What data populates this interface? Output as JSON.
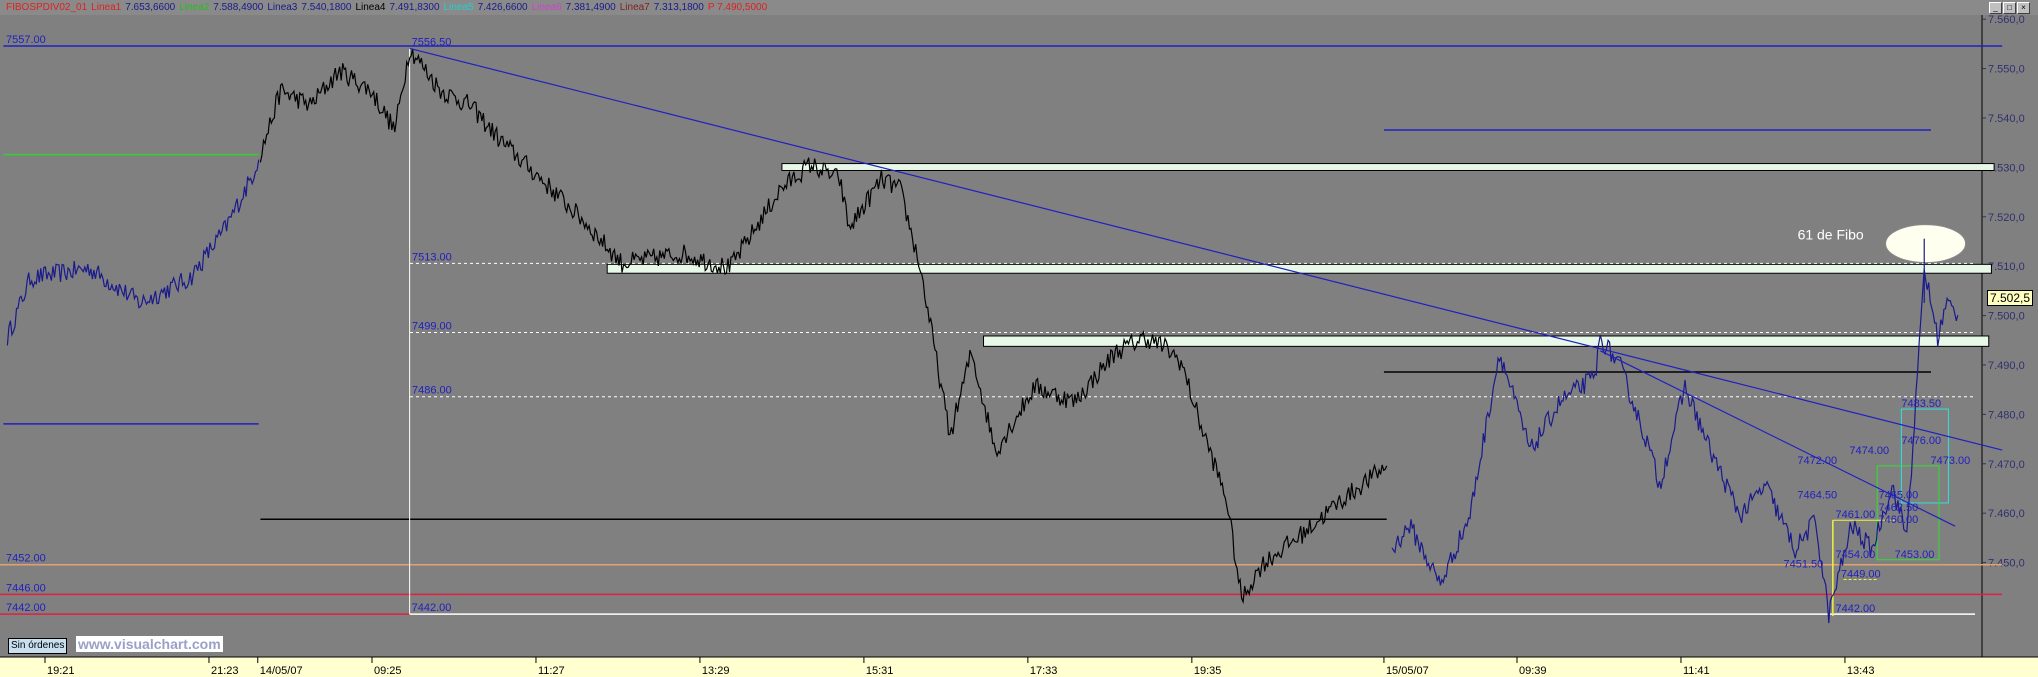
{
  "header": {
    "items": [
      {
        "label": "FIBOSPDIV02_01",
        "color": "#e02020"
      },
      {
        "label": "Linea1",
        "color": "#e02020"
      },
      {
        "label": "7.653,6600",
        "color": "#1a1a8c"
      },
      {
        "label": "Linea2",
        "color": "#20c020"
      },
      {
        "label": "7.588,4900",
        "color": "#1a1a8c"
      },
      {
        "label": "Linea3",
        "color": "#1a1a8c"
      },
      {
        "label": "7.540,1800",
        "color": "#1a1a8c"
      },
      {
        "label": "Linea4",
        "color": "#000000"
      },
      {
        "label": "7.491,8300",
        "color": "#1a1a8c"
      },
      {
        "label": "Linea5",
        "color": "#20d0d0"
      },
      {
        "label": "7.426,6600",
        "color": "#1a1a8c"
      },
      {
        "label": "Linea6",
        "color": "#d040d0"
      },
      {
        "label": "7.381,4900",
        "color": "#1a1a8c"
      },
      {
        "label": "Linea7",
        "color": "#802020"
      },
      {
        "label": "7.313,1800",
        "color": "#1a1a8c"
      },
      {
        "label": "P 7.490,5000",
        "color": "#e02020"
      }
    ],
    "window_buttons": [
      "_",
      "□",
      "×"
    ]
  },
  "footer": {
    "orders_label": "Sin órdenes",
    "watermark": "www.visualchart.com"
  },
  "chart_data": {
    "type": "line",
    "title": "",
    "y_ticks": [
      "7.560,0",
      "7.550,0",
      "7.540,0",
      "7.530,0",
      "7.520,0",
      "7.510,0",
      "7.500,0",
      "7.490,0",
      "7.480,0",
      "7.470,0",
      "7.460,0",
      "7.450,0"
    ],
    "y_tick_values": [
      7560,
      7550,
      7540,
      7530,
      7520,
      7510,
      7500,
      7490,
      7480,
      7470,
      7460,
      7450
    ],
    "ylim": [
      7439,
      7563
    ],
    "x_ticks": [
      {
        "label": "19:21",
        "session": "A",
        "time": "19:21"
      },
      {
        "label": "21:23",
        "session": "A",
        "time": "21:23"
      },
      {
        "label": "14/05/07",
        "session": "B",
        "time": "08:00"
      },
      {
        "label": "09:25",
        "session": "B",
        "time": "09:25"
      },
      {
        "label": "11:27",
        "session": "B",
        "time": "11:27"
      },
      {
        "label": "13:29",
        "session": "B",
        "time": "13:29"
      },
      {
        "label": "15:31",
        "session": "B",
        "time": "15:31"
      },
      {
        "label": "17:33",
        "session": "B",
        "time": "17:33"
      },
      {
        "label": "19:35",
        "session": "B",
        "time": "19:35"
      },
      {
        "label": "15/05/07",
        "session": "C",
        "time": "08:00"
      },
      {
        "label": "09:39",
        "session": "C",
        "time": "09:39"
      },
      {
        "label": "11:41",
        "session": "C",
        "time": "11:41"
      },
      {
        "label": "13:43",
        "session": "C",
        "time": "13:43"
      }
    ],
    "last_price": "7.502,5",
    "series": [
      {
        "session": "A",
        "color": "#1a1a8c",
        "points": [
          [
            "18:53",
            7498
          ],
          [
            "19:10",
            7510
          ],
          [
            "19:54",
            7512
          ],
          [
            "20:32",
            7505
          ],
          [
            "21:09",
            7510
          ],
          [
            "21:35",
            7520
          ],
          [
            "21:54",
            7530
          ],
          [
            "22:00",
            7534
          ]
        ]
      },
      {
        "session": "B",
        "color": "#000000",
        "points": [
          [
            "08:02",
            7535
          ],
          [
            "08:17",
            7548
          ],
          [
            "08:39",
            7545
          ],
          [
            "09:01",
            7552
          ],
          [
            "09:24",
            7548
          ],
          [
            "09:42",
            7540
          ],
          [
            "09:53",
            7556.5
          ],
          [
            "10:16",
            7548
          ],
          [
            "10:38",
            7545
          ],
          [
            "11:00",
            7538
          ],
          [
            "11:31",
            7530
          ],
          [
            "12:01",
            7522
          ],
          [
            "12:31",
            7513
          ],
          [
            "13:16",
            7515
          ],
          [
            "13:51",
            7512
          ],
          [
            "14:29",
            7528
          ],
          [
            "14:51",
            7533
          ],
          [
            "15:13",
            7530
          ],
          [
            "15:20",
            7520
          ],
          [
            "15:44",
            7530
          ],
          [
            "15:58",
            7528
          ],
          [
            "16:13",
            7512
          ],
          [
            "16:24",
            7495
          ],
          [
            "16:35",
            7478
          ],
          [
            "16:51",
            7495
          ],
          [
            "17:09",
            7475
          ],
          [
            "17:38",
            7488
          ],
          [
            "18:08",
            7485
          ],
          [
            "18:38",
            7495
          ],
          [
            "19:00",
            7498
          ],
          [
            "19:15",
            7496
          ],
          [
            "19:27",
            7493
          ],
          [
            "19:42",
            7480
          ],
          [
            "20:01",
            7465
          ],
          [
            "20:12",
            7445
          ],
          [
            "20:27",
            7452
          ],
          [
            "20:56",
            7458
          ],
          [
            "21:26",
            7465
          ],
          [
            "22:00",
            7472
          ]
        ]
      },
      {
        "session": "C",
        "color": "#1a1a8c",
        "points": [
          [
            "08:06",
            7455
          ],
          [
            "08:19",
            7460
          ],
          [
            "08:42",
            7448
          ],
          [
            "09:04",
            7462
          ],
          [
            "09:26",
            7495
          ],
          [
            "09:49",
            7475
          ],
          [
            "10:11",
            7485
          ],
          [
            "10:37",
            7490
          ],
          [
            "10:41",
            7498
          ],
          [
            "10:56",
            7492
          ],
          [
            "11:18",
            7475
          ],
          [
            "11:25",
            7468
          ],
          [
            "11:44",
            7488
          ],
          [
            "12:03",
            7475
          ],
          [
            "12:25",
            7462
          ],
          [
            "12:44",
            7468
          ],
          [
            "13:06",
            7455
          ],
          [
            "13:21",
            7461
          ],
          [
            "13:31",
            7442
          ],
          [
            "13:48",
            7460
          ],
          [
            "14:03",
            7455
          ],
          [
            "14:18",
            7468
          ],
          [
            "14:29",
            7458
          ],
          [
            "14:37",
            7490
          ],
          [
            "14:42",
            7512
          ],
          [
            "14:52",
            7498
          ],
          [
            "14:59",
            7505
          ],
          [
            "15:07",
            7502.5
          ]
        ]
      }
    ],
    "levels": [
      {
        "price": 7557,
        "color": "#2020c0",
        "from": [
          "A",
          "18:50"
        ],
        "to": [
          "C",
          "15:40"
        ],
        "label": "7557.00"
      },
      {
        "price": 7535,
        "color": "#30d030",
        "from": [
          "A",
          "18:50"
        ],
        "to": [
          "A",
          "22:00"
        ]
      },
      {
        "price": 7480.5,
        "color": "#2020c0",
        "from": [
          "A",
          "18:50"
        ],
        "to": [
          "A",
          "22:00"
        ]
      },
      {
        "price": 7461.2,
        "color": "#000000",
        "from": [
          "B",
          "08:02"
        ],
        "to": [
          "B",
          "22:00"
        ]
      },
      {
        "price": 7540,
        "color": "#2020c0",
        "from": [
          "C",
          "08:00"
        ],
        "to": [
          "C",
          "14:47"
        ]
      },
      {
        "price": 7491,
        "color": "#000000",
        "from": [
          "C",
          "08:00"
        ],
        "to": [
          "C",
          "14:47"
        ]
      },
      {
        "price": 7452,
        "color": "#e0a070",
        "from": [
          "A",
          "18:47"
        ],
        "to": [
          "C",
          "15:40"
        ],
        "label": "7452.00"
      },
      {
        "price": 7446,
        "color": "#e02040",
        "from": [
          "A",
          "18:47"
        ],
        "to": [
          "C",
          "15:40"
        ],
        "label": "7446.00"
      }
    ],
    "zones": [
      {
        "top": 7533.2,
        "bottom": 7531.8,
        "from": [
          "B",
          "14:30"
        ],
        "to": [
          "C",
          "15:34"
        ]
      },
      {
        "top": 7512.8,
        "bottom": 7511,
        "from": [
          "B",
          "12:20"
        ],
        "to": [
          "C",
          "15:32"
        ]
      },
      {
        "top": 7498.3,
        "bottom": 7496.2,
        "from": [
          "B",
          "17:00"
        ],
        "to": [
          "C",
          "15:30"
        ]
      }
    ],
    "dashed_levels": [
      {
        "price": 7513,
        "label": "7513.00"
      },
      {
        "price": 7499,
        "label": "7499.00"
      },
      {
        "price": 7486,
        "label": "7486.00"
      }
    ],
    "high_marker": {
      "price": 7556.5,
      "label": "7556.50",
      "session": "B",
      "time": "09:53"
    },
    "low_marker": {
      "price": 7442,
      "label": "7442.00"
    },
    "left_low_label": "7442.00",
    "trendlines": [
      {
        "from": [
          "B",
          "09:53",
          7556.5
        ],
        "to": [
          "C",
          "15:40",
          7475.2
        ],
        "color": "#2020c0"
      },
      {
        "from": [
          "C",
          "10:41",
          7495.3
        ],
        "to": [
          "C",
          "15:05",
          7459.8
        ],
        "color": "#2020c0"
      }
    ],
    "annotation": {
      "text": "61 de Fibo",
      "price": 7517,
      "session": "C",
      "time": "14:43"
    },
    "fib_boxes": [
      {
        "color": "#30e0e0",
        "top": 7483.5,
        "bottom": 7464.5,
        "from": [
          "C",
          "14:25"
        ],
        "to": [
          "C",
          "15:00"
        ]
      },
      {
        "color": "#30e030",
        "top": 7472,
        "bottom": 7453,
        "from": [
          "C",
          "14:07"
        ],
        "to": [
          "C",
          "14:53"
        ]
      }
    ],
    "fib_labels": [
      {
        "text": "7483.50",
        "price": 7483.5,
        "time": "14:25"
      },
      {
        "text": "7476.00",
        "price": 7476,
        "time": "14:25"
      },
      {
        "text": "7474.00",
        "price": 7474,
        "time": "14:25"
      },
      {
        "text": "7473.00",
        "price": 7472,
        "time": "14:08"
      },
      {
        "text": "7472.00",
        "price": 7472,
        "time": "14:25"
      },
      {
        "text": "7465.00",
        "price": 7465,
        "time": "14:08"
      },
      {
        "text": "7464.50",
        "price": 7465,
        "time": "14:25"
      },
      {
        "text": "7462.50",
        "price": 7462.5,
        "time": "14:08"
      },
      {
        "text": "7461.00",
        "price": 7461,
        "time": "13:36"
      },
      {
        "text": "7460.00",
        "price": 7460,
        "time": "14:08"
      },
      {
        "text": "7454.00",
        "price": 7453,
        "time": "13:36"
      },
      {
        "text": "7453.00",
        "price": 7453,
        "time": "14:20"
      },
      {
        "text": "7451.50",
        "price": 7451,
        "time": "13:36"
      },
      {
        "text": "7449.00",
        "price": 7449,
        "time": "13:40"
      },
      {
        "text": "7442.00",
        "price": 7442,
        "time": "13:36"
      }
    ],
    "grid": false
  }
}
